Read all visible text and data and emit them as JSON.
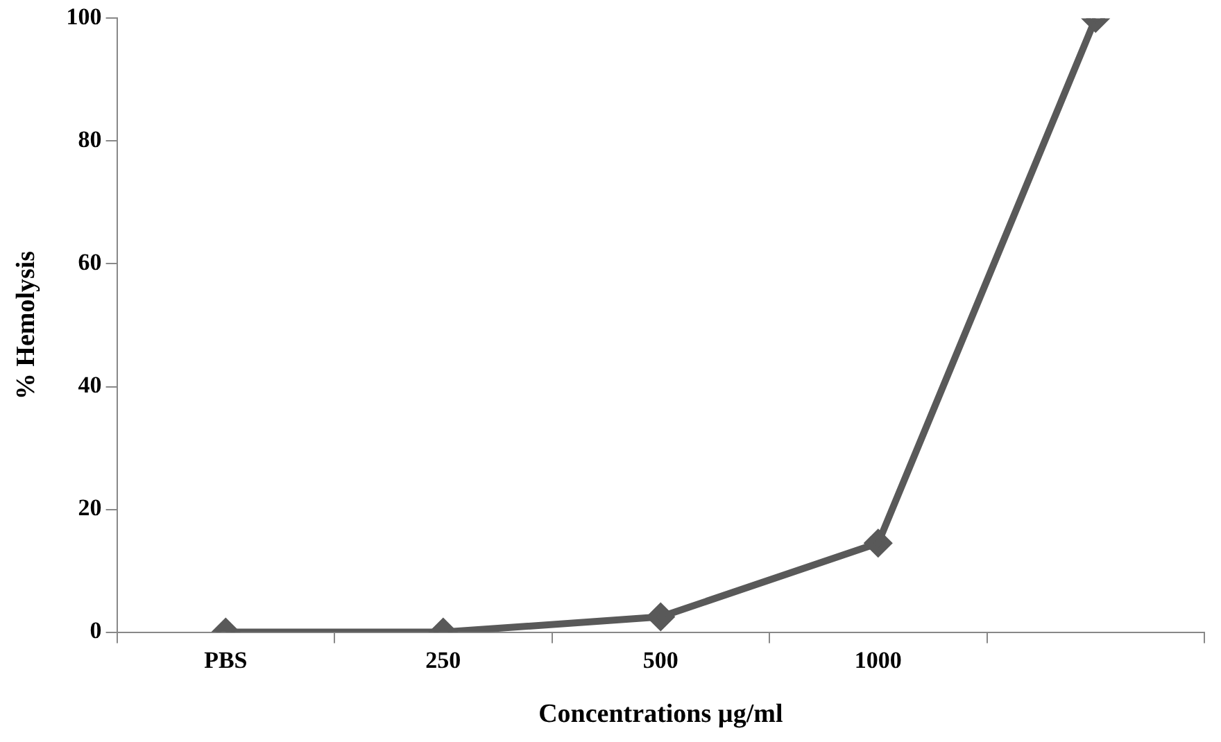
{
  "chart_data": {
    "type": "line",
    "xlabel": "Concentrations µg/ml",
    "ylabel": "% Hemolysis",
    "categories": [
      "PBS",
      "250",
      "500",
      "1000",
      null
    ],
    "series": [
      {
        "color": "#595959",
        "values": [
          0,
          0,
          2.5,
          14.5,
          100
        ]
      }
    ],
    "ylim": [
      0,
      100
    ],
    "yticks": [
      0,
      20,
      40,
      60,
      80,
      100
    ],
    "grid": false,
    "legend": false,
    "marker": "diamond",
    "line_style": "solid"
  }
}
